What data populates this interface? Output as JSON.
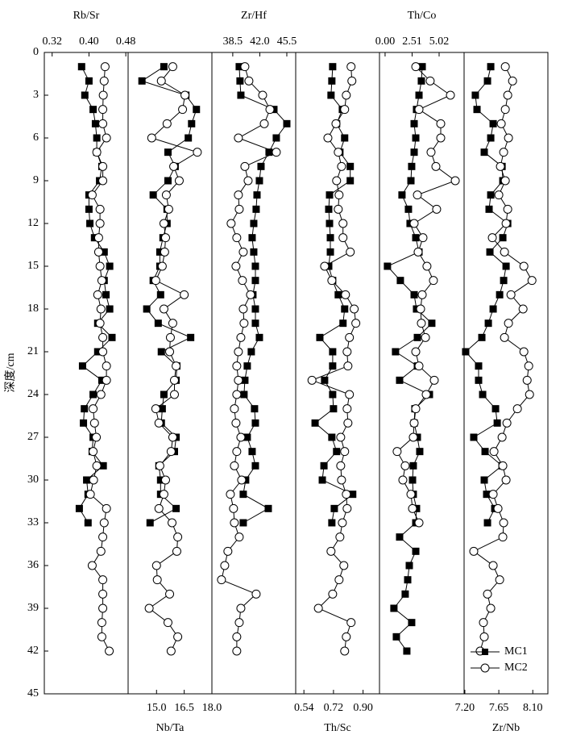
{
  "chart_data": {
    "type": "line",
    "y_label": "深度/cm",
    "ylim": [
      0,
      45
    ],
    "yticks": [
      0,
      3,
      6,
      9,
      12,
      15,
      18,
      21,
      24,
      27,
      30,
      33,
      36,
      39,
      42,
      45
    ],
    "depths": [
      1,
      2,
      3,
      4,
      5,
      6,
      7,
      8,
      9,
      10,
      11,
      12,
      13,
      14,
      15,
      16,
      17,
      18,
      19,
      20,
      21,
      22,
      23,
      24,
      25,
      26,
      27,
      28,
      29,
      30,
      31,
      32,
      33,
      34,
      35,
      36,
      37,
      38,
      39,
      40,
      41,
      42
    ],
    "legend": "lower right",
    "series": [
      {
        "name": "MC1",
        "marker": "square",
        "color": "#000000"
      },
      {
        "name": "MC2",
        "marker": "circle",
        "color": "#000000"
      }
    ],
    "panels": [
      {
        "x_label": "Rb/Sr",
        "axis_side": "top",
        "xlim": [
          0.303,
          0.485
        ],
        "xticks": [
          0.32,
          {
            "value": 0.4,
            "label": "0.40"
          },
          0.48
        ],
        "series": [
          {
            "values": [
              0.384,
              0.4,
              0.391,
              0.409,
              0.414,
              0.417,
              0.417,
              0.428,
              0.423,
              0.4,
              0.4,
              0.402,
              0.412,
              0.433,
              0.445,
              0.433,
              0.437,
              0.445,
              0.419,
              0.45,
              0.419,
              0.386,
              0.428,
              0.409,
              0.39,
              0.388,
              0.409,
              0.407,
              0.431,
              0.395,
              0.398,
              0.379,
              0.398,
              null,
              null,
              null,
              null,
              null,
              null,
              null,
              null,
              null
            ]
          },
          {
            "values": [
              0.435,
              0.433,
              0.431,
              0.43,
              0.43,
              0.438,
              0.417,
              0.43,
              0.43,
              0.407,
              0.424,
              0.424,
              0.421,
              0.421,
              0.424,
              0.428,
              0.419,
              0.426,
              0.424,
              0.43,
              0.43,
              0.438,
              0.438,
              0.426,
              0.409,
              0.412,
              0.416,
              0.409,
              0.417,
              0.41,
              0.403,
              0.438,
              0.433,
              0.43,
              0.426,
              0.407,
              0.43,
              0.43,
              0.43,
              0.428,
              0.428,
              0.444
            ]
          }
        ]
      },
      {
        "x_label": "Nb/Ta",
        "axis_side": "bottom",
        "xlim": [
          13.46,
          18.0
        ],
        "xticks": [
          {
            "value": 15,
            "label": "15.0"
          },
          16.5,
          {
            "value": 18,
            "label": "18.0"
          }
        ],
        "series": [
          {
            "values": [
              15.4,
              14.21,
              16.59,
              17.16,
              16.9,
              16.72,
              15.62,
              16.01,
              15.62,
              14.82,
              15.57,
              15.57,
              15.35,
              15.18,
              15.18,
              14.82,
              15.22,
              14.47,
              15.09,
              16.85,
              15.26,
              16.1,
              16.06,
              15.4,
              15.31,
              15.26,
              16.06,
              15.97,
              15.13,
              15.22,
              15.22,
              16.06,
              14.65,
              null,
              null,
              null,
              null,
              null,
              null,
              null,
              null,
              null
            ]
          },
          {
            "values": [
              15.88,
              15.26,
              16.54,
              16.41,
              15.57,
              14.74,
              17.21,
              15.93,
              16.23,
              15.53,
              15.66,
              15.4,
              15.49,
              15.44,
              15.31,
              14.96,
              16.5,
              15.4,
              15.88,
              15.75,
              15.71,
              16.06,
              15.97,
              15.97,
              14.96,
              15.13,
              15.88,
              15.79,
              15.18,
              15.49,
              15.4,
              15.13,
              15.84,
              16.15,
              16.1,
              15.0,
              15.04,
              15.71,
              14.6,
              15.62,
              16.15,
              15.79
            ]
          }
        ]
      },
      {
        "x_label": "Zr/Hf",
        "axis_side": "top",
        "xlim": [
          35.8,
          46.65
        ],
        "xticks": [
          38.5,
          {
            "value": 42,
            "label": "42.0"
          },
          45.5
        ],
        "series": [
          {
            "values": [
              39.34,
              39.44,
              39.55,
              43.83,
              45.5,
              44.14,
              43.2,
              42.16,
              41.95,
              41.64,
              41.53,
              41.22,
              41.01,
              41.22,
              41.43,
              41.43,
              41.11,
              41.43,
              41.43,
              41.95,
              40.9,
              40.38,
              40.07,
              39.96,
              41.32,
              41.43,
              40.38,
              41.01,
              41.43,
              40.17,
              39.86,
              43.1,
              39.86,
              null,
              null,
              null,
              null,
              null,
              null,
              null,
              null,
              null
            ]
          },
          {
            "values": [
              40.07,
              40.59,
              42.37,
              43.31,
              42.58,
              39.23,
              44.14,
              40.07,
              40.49,
              39.23,
              39.34,
              38.29,
              39.02,
              39.86,
              38.92,
              39.75,
              40.8,
              39.86,
              39.96,
              39.55,
              39.23,
              39.02,
              39.23,
              39.02,
              38.71,
              38.92,
              39.55,
              39.02,
              38.71,
              39.65,
              38.19,
              38.6,
              38.71,
              39.34,
              37.87,
              37.46,
              37.04,
              41.53,
              39.55,
              39.34,
              39.02,
              39.02
            ]
          }
        ]
      },
      {
        "x_label": "Th/Sc",
        "axis_side": "bottom",
        "xlim": [
          0.49,
          1.0
        ],
        "xticks": [
          0.54,
          0.72,
          {
            "value": 0.9,
            "label": "0.90"
          }
        ],
        "series": [
          {
            "values": [
              0.715,
              0.71,
              0.705,
              0.774,
              0.739,
              0.788,
              0.759,
              0.822,
              0.822,
              0.696,
              0.691,
              0.696,
              0.701,
              0.701,
              0.691,
              0.715,
              0.749,
              0.788,
              0.778,
              0.637,
              0.715,
              0.715,
              0.666,
              0.715,
              0.72,
              0.608,
              0.71,
              0.739,
              0.662,
              0.652,
              0.837,
              0.725,
              0.71,
              null,
              null,
              null,
              null,
              null,
              null,
              null,
              null,
              null
            ]
          },
          {
            "values": [
              0.827,
              0.832,
              0.798,
              0.788,
              0.735,
              0.686,
              0.749,
              0.769,
              0.739,
              0.754,
              0.749,
              0.778,
              0.778,
              0.822,
              0.666,
              0.71,
              0.793,
              0.846,
              0.856,
              0.817,
              0.803,
              0.808,
              0.589,
              0.817,
              0.803,
              0.808,
              0.764,
              0.788,
              0.764,
              0.769,
              0.798,
              0.803,
              0.774,
              0.759,
              0.705,
              0.783,
              0.754,
              0.715,
              0.628,
              0.827,
              0.798,
              0.788
            ]
          }
        ]
      },
      {
        "x_label": "Th/Co",
        "axis_side": "top",
        "xlim": [
          -0.52,
          7.34
        ],
        "xticks": [
          {
            "value": 0,
            "label": "0.00"
          },
          2.51,
          5.02
        ],
        "series": [
          {
            "values": [
              3.45,
              3.37,
              3.15,
              2.92,
              2.7,
              2.85,
              2.7,
              2.47,
              2.4,
              1.57,
              2.17,
              2.32,
              2.85,
              3.15,
              0.22,
              1.42,
              2.7,
              2.92,
              4.34,
              3.0,
              0.97,
              3.0,
              1.35,
              4.12,
              2.77,
              2.7,
              3.0,
              3.22,
              2.62,
              2.55,
              2.62,
              2.92,
              2.85,
              1.35,
              2.85,
              2.25,
              2.1,
              1.87,
              0.82,
              2.47,
              1.05,
              2.02
            ]
          },
          {
            "values": [
              2.85,
              4.19,
              6.07,
              3.15,
              5.17,
              5.17,
              4.27,
              4.72,
              6.52,
              3.0,
              4.79,
              2.7,
              3.52,
              3.07,
              3.89,
              4.49,
              3.45,
              3.3,
              3.37,
              3.75,
              2.85,
              3.15,
              4.57,
              3.82,
              2.85,
              2.7,
              2.62,
              1.12,
              1.87,
              1.65,
              2.4,
              2.55,
              3.15,
              null,
              null,
              null,
              null,
              null,
              null,
              null,
              null,
              null
            ]
          }
        ]
      },
      {
        "x_label": "Zr/Nb",
        "axis_side": "bottom",
        "xlim": [
          7.19,
          8.3
        ],
        "xticks": [
          {
            "value": 7.2,
            "label": "7.20"
          },
          7.65,
          {
            "value": 8.1,
            "label": "8.10"
          }
        ],
        "series": [
          {
            "values": [
              7.543,
              7.5,
              7.339,
              7.361,
              7.575,
              7.543,
              7.457,
              7.693,
              7.703,
              7.543,
              7.521,
              7.768,
              7.703,
              7.532,
              7.746,
              7.714,
              7.661,
              7.575,
              7.511,
              7.425,
              7.211,
              7.382,
              7.382,
              7.436,
              7.607,
              7.629,
              7.318,
              7.468,
              7.693,
              7.457,
              7.489,
              7.596,
              7.5,
              null,
              null,
              null,
              null,
              null,
              null,
              null,
              null,
              null
            ]
          },
          {
            "values": [
              7.736,
              7.832,
              7.768,
              7.736,
              7.682,
              7.778,
              7.714,
              7.671,
              7.736,
              7.65,
              7.768,
              7.746,
              7.564,
              7.725,
              7.982,
              8.089,
              7.811,
              7.971,
              7.778,
              7.725,
              7.982,
              8.046,
              8.025,
              8.057,
              7.896,
              7.757,
              7.693,
              7.586,
              7.703,
              7.746,
              7.575,
              7.639,
              7.714,
              7.703,
              7.318,
              7.575,
              7.661,
              7.5,
              7.543,
              7.446,
              7.457,
              7.403
            ]
          }
        ]
      }
    ]
  }
}
